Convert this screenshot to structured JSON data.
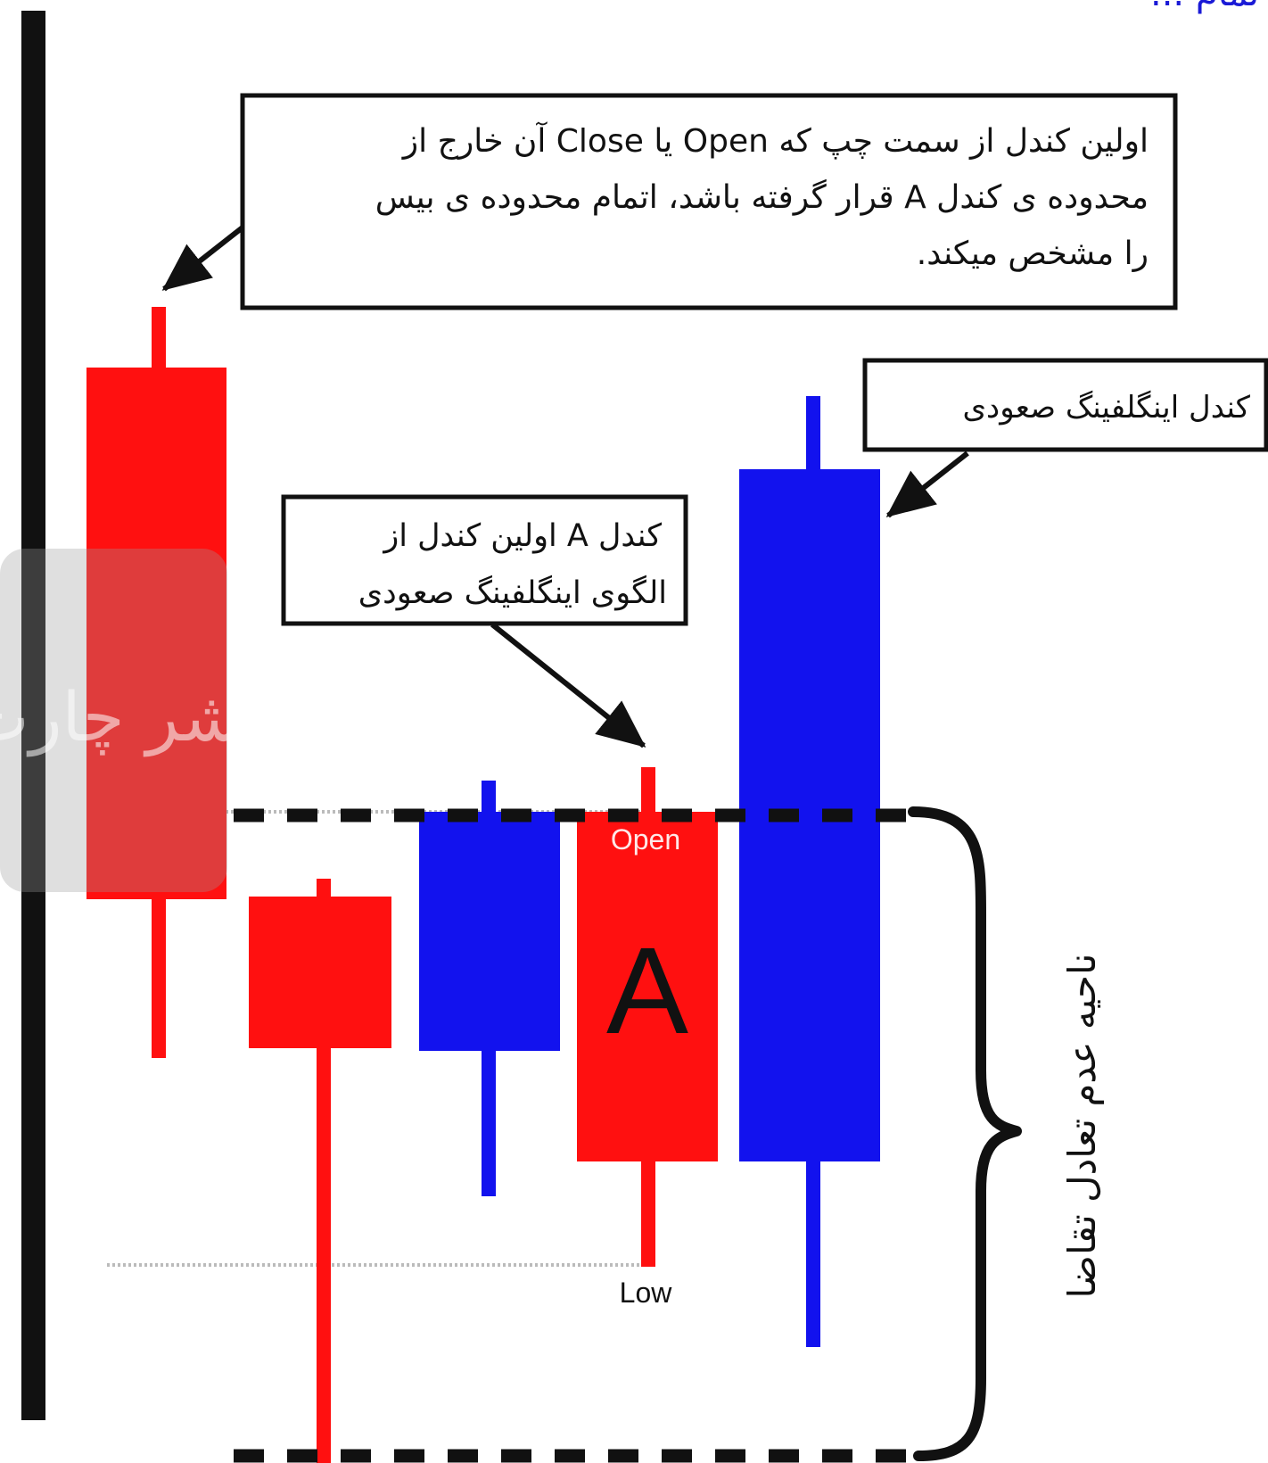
{
  "header": {
    "text": "ز تمام ...",
    "color": "#1a1ad6"
  },
  "callouts": {
    "base_end": {
      "lines": [
        "اولین کندل از سمت چپ که Open یا Close آن خارج از",
        "محدوده ی کندل A قرار گرفته باشد، اتمام محدوده ی بیس",
        "را مشخص میکند."
      ]
    },
    "engulfing": {
      "lines": [
        "کندل اینگلفینگ صعودی"
      ]
    },
    "candle_a": {
      "lines": [
        "کندل A  اولین کندل از",
        "الگوی اینگلفینگ صعودی"
      ]
    }
  },
  "candle_labels": {
    "open": "Open",
    "letter": "A",
    "low": "Low"
  },
  "zone_label": "ناحیه عدم تعادل تقاضا",
  "watermark": "نشر چارت",
  "colors": {
    "bearish": "#ff1010",
    "bullish": "#1212ee",
    "text": "#111111",
    "dash": "#111111",
    "dotted": "#bbbbbb"
  }
}
